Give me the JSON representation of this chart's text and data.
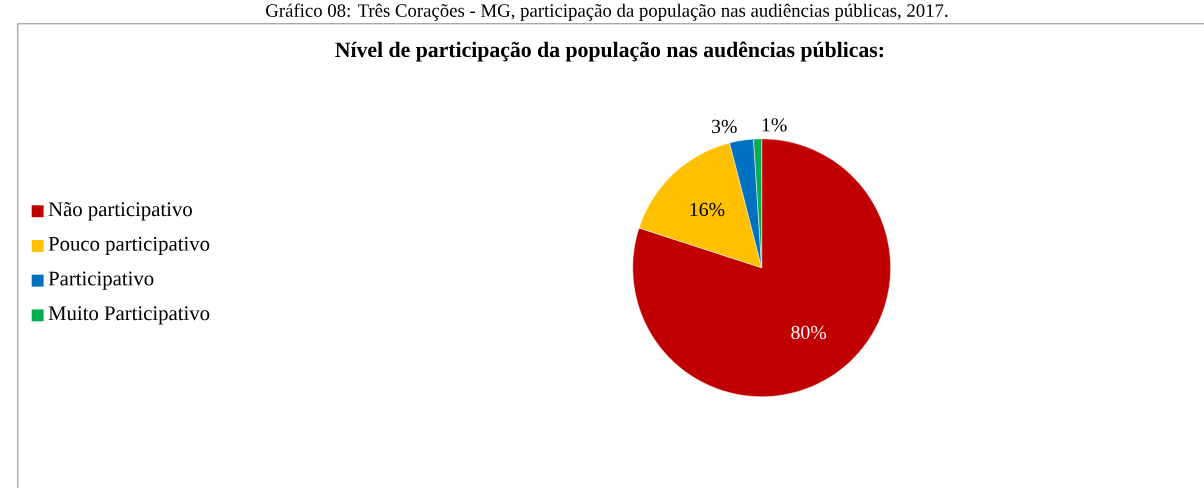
{
  "chart_data": {
    "type": "pie",
    "title": "Nível de participação da população nas audências públicas:",
    "categories": [
      "Não participativo",
      "Pouco participativo",
      "Participativo",
      "Muito Participativo"
    ],
    "values": [
      80,
      16,
      3,
      1
    ],
    "colors": [
      "#c00000",
      "#ffc000",
      "#0070c0",
      "#00b050"
    ],
    "value_labels": [
      "80%",
      "16%",
      "3%",
      "1%"
    ],
    "legend": "left",
    "annotations": [
      "Gráfico 08: Três Corações - MG, participação da população nas audiências públicas, 2017."
    ]
  }
}
